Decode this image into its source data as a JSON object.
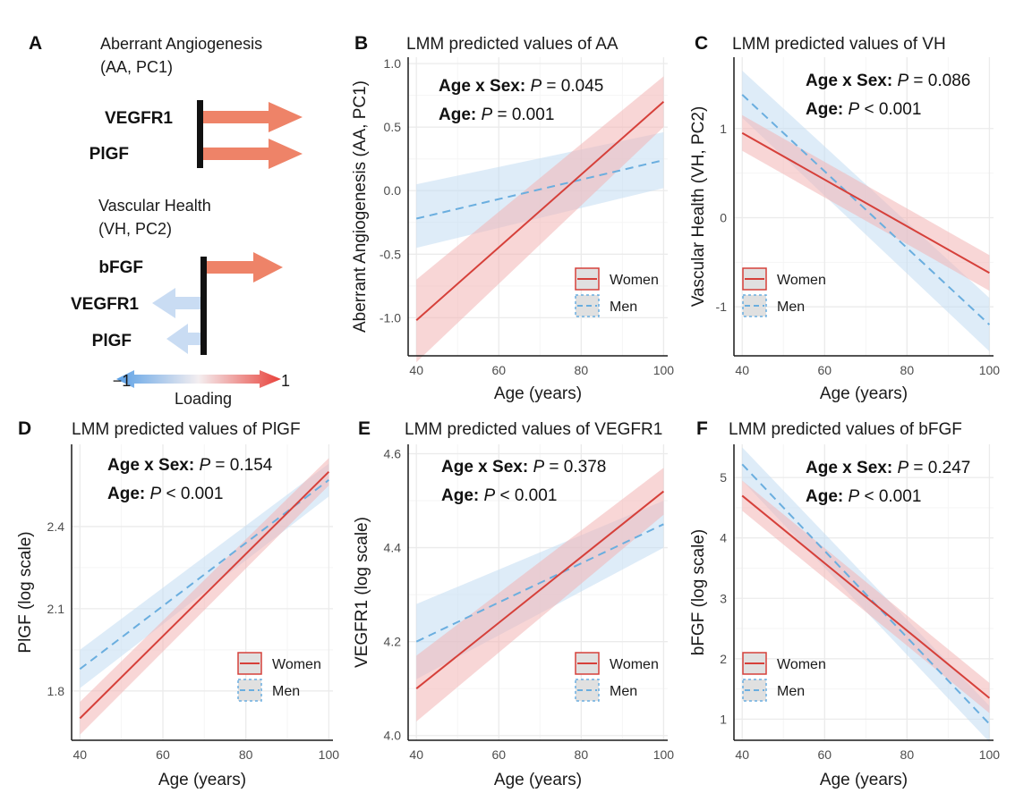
{
  "colors": {
    "women": "#d6403a",
    "women_band": "#f3b4b4",
    "men": "#6aaedf",
    "men_band": "#c3dcf2",
    "arrow_pos": "#ee8368",
    "arrow_neg": "#c9dcf3",
    "grid_major": "#ebebeb",
    "grid_minor": "#f5f5f5"
  },
  "schematic": {
    "letter": "A",
    "group1_title": "Aberrant Angiogenesis",
    "group1_sub": "(AA, PC1)",
    "group1_genes": [
      {
        "name": "VEGFR1",
        "loading": 1
      },
      {
        "name": "PlGF",
        "loading": 1
      }
    ],
    "group2_title": "Vascular Health",
    "group2_sub": "(VH, PC2)",
    "group2_genes": [
      {
        "name": "bFGF",
        "loading": 1
      },
      {
        "name": "VEGFR1",
        "loading": -1
      },
      {
        "name": "PlGF",
        "loading": -1
      }
    ],
    "scale_min": "−1",
    "scale_max": "1",
    "scale_label": "Loading"
  },
  "legend": {
    "women": "Women",
    "men": "Men"
  },
  "chart_data": [
    {
      "letter": "B",
      "type": "line",
      "title": "LMM predicted values of AA",
      "xlabel": "Age (years)",
      "ylabel": "Aberrant Angiogenesis (AA, PC1)",
      "xlim": [
        38,
        101
      ],
      "ylim": [
        -1.3,
        1.05
      ],
      "xticks": [
        40,
        60,
        80,
        100
      ],
      "yticks": [
        -1.0,
        -0.5,
        0.0,
        0.5,
        1.0
      ],
      "ytick_labels": [
        "-1.0",
        "-0.5",
        "0.0",
        "0.5",
        "1.0"
      ],
      "stats": [
        {
          "label": "Age x Sex:",
          "p": "P",
          "rest": " = 0.045"
        },
        {
          "label": "Age:",
          "p": "P",
          "rest": " = 0.001"
        }
      ],
      "legend_position": "bottom-right",
      "series": [
        {
          "name": "Women",
          "x": [
            40,
            100
          ],
          "y": [
            -1.02,
            0.7
          ],
          "lower": [
            -1.35,
            0.5
          ],
          "upper": [
            -0.7,
            0.9
          ]
        },
        {
          "name": "Men",
          "x": [
            40,
            100
          ],
          "y": [
            -0.22,
            0.24
          ],
          "lower": [
            -0.45,
            0.02
          ],
          "upper": [
            0.05,
            0.46
          ]
        }
      ]
    },
    {
      "letter": "C",
      "type": "line",
      "title": "LMM predicted values of VH",
      "xlabel": "Age (years)",
      "ylabel": "Vascular Health (VH, PC2)",
      "xlim": [
        38,
        101
      ],
      "ylim": [
        -1.55,
        1.8
      ],
      "xticks": [
        40,
        60,
        80,
        100
      ],
      "yticks": [
        -1,
        0,
        1
      ],
      "ytick_labels": [
        "-1",
        "0",
        "1"
      ],
      "stats": [
        {
          "label": "Age x Sex:",
          "p": "P",
          "rest": " = 0.086"
        },
        {
          "label": "Age:",
          "p": "P",
          "rest": " < 0.001"
        }
      ],
      "legend_position": "bottom-left",
      "series": [
        {
          "name": "Women",
          "x": [
            40,
            100
          ],
          "y": [
            0.95,
            -0.62
          ],
          "lower": [
            0.75,
            -0.82
          ],
          "upper": [
            1.15,
            -0.42
          ]
        },
        {
          "name": "Men",
          "x": [
            40,
            100
          ],
          "y": [
            1.38,
            -1.2
          ],
          "lower": [
            1.12,
            -1.5
          ],
          "upper": [
            1.65,
            -0.9
          ]
        }
      ]
    },
    {
      "letter": "D",
      "type": "line",
      "title": "LMM predicted values of PlGF",
      "xlabel": "Age (years)",
      "ylabel": "PlGF (log scale)",
      "xlim": [
        38,
        101
      ],
      "ylim": [
        1.62,
        2.7
      ],
      "xticks": [
        40,
        60,
        80,
        100
      ],
      "yticks": [
        1.8,
        2.1,
        2.4
      ],
      "ytick_labels": [
        "1.8",
        "2.1",
        "2.4"
      ],
      "stats": [
        {
          "label": "Age x Sex:",
          "p": "P",
          "rest": " = 0.154"
        },
        {
          "label": "Age:",
          "p": "P",
          "rest": " < 0.001"
        }
      ],
      "legend_position": "bottom-right",
      "series": [
        {
          "name": "Women",
          "x": [
            40,
            100
          ],
          "y": [
            1.7,
            2.6
          ],
          "lower": [
            1.64,
            2.55
          ],
          "upper": [
            1.76,
            2.65
          ]
        },
        {
          "name": "Men",
          "x": [
            40,
            100
          ],
          "y": [
            1.88,
            2.57
          ],
          "lower": [
            1.81,
            2.51
          ],
          "upper": [
            1.95,
            2.63
          ]
        }
      ]
    },
    {
      "letter": "E",
      "type": "line",
      "title": "LMM predicted values of VEGFR1",
      "xlabel": "Age (years)",
      "ylabel": "VEGFR1 (log scale)",
      "xlim": [
        38,
        101
      ],
      "ylim": [
        3.99,
        4.62
      ],
      "xticks": [
        40,
        60,
        80,
        100
      ],
      "yticks": [
        4.0,
        4.2,
        4.4,
        4.6
      ],
      "ytick_labels": [
        "4.0",
        "4.2",
        "4.4",
        "4.6"
      ],
      "stats": [
        {
          "label": "Age x Sex:",
          "p": "P",
          "rest": " = 0.378"
        },
        {
          "label": "Age:",
          "p": "P",
          "rest": " < 0.001"
        }
      ],
      "legend_position": "bottom-right",
      "series": [
        {
          "name": "Women",
          "x": [
            40,
            100
          ],
          "y": [
            4.1,
            4.52
          ],
          "lower": [
            4.03,
            4.47
          ],
          "upper": [
            4.17,
            4.57
          ]
        },
        {
          "name": "Men",
          "x": [
            40,
            100
          ],
          "y": [
            4.2,
            4.45
          ],
          "lower": [
            4.12,
            4.4
          ],
          "upper": [
            4.28,
            4.5
          ]
        }
      ]
    },
    {
      "letter": "F",
      "type": "line",
      "title": "LMM predicted values of bFGF",
      "xlabel": "Age (years)",
      "ylabel": "bFGF (log scale)",
      "xlim": [
        38,
        101
      ],
      "ylim": [
        0.65,
        5.55
      ],
      "xticks": [
        40,
        60,
        80,
        100
      ],
      "yticks": [
        1,
        2,
        3,
        4,
        5
      ],
      "ytick_labels": [
        "1",
        "2",
        "3",
        "4",
        "5"
      ],
      "stats": [
        {
          "label": "Age x Sex:",
          "p": "P",
          "rest": " = 0.247"
        },
        {
          "label": "Age:",
          "p": "P",
          "rest": " < 0.001"
        }
      ],
      "legend_position": "bottom-left",
      "series": [
        {
          "name": "Women",
          "x": [
            40,
            100
          ],
          "y": [
            4.7,
            1.35
          ],
          "lower": [
            4.45,
            1.1
          ],
          "upper": [
            4.95,
            1.6
          ]
        },
        {
          "name": "Men",
          "x": [
            40,
            100
          ],
          "y": [
            5.22,
            0.92
          ],
          "lower": [
            4.95,
            0.62
          ],
          "upper": [
            5.5,
            1.22
          ]
        }
      ]
    }
  ]
}
